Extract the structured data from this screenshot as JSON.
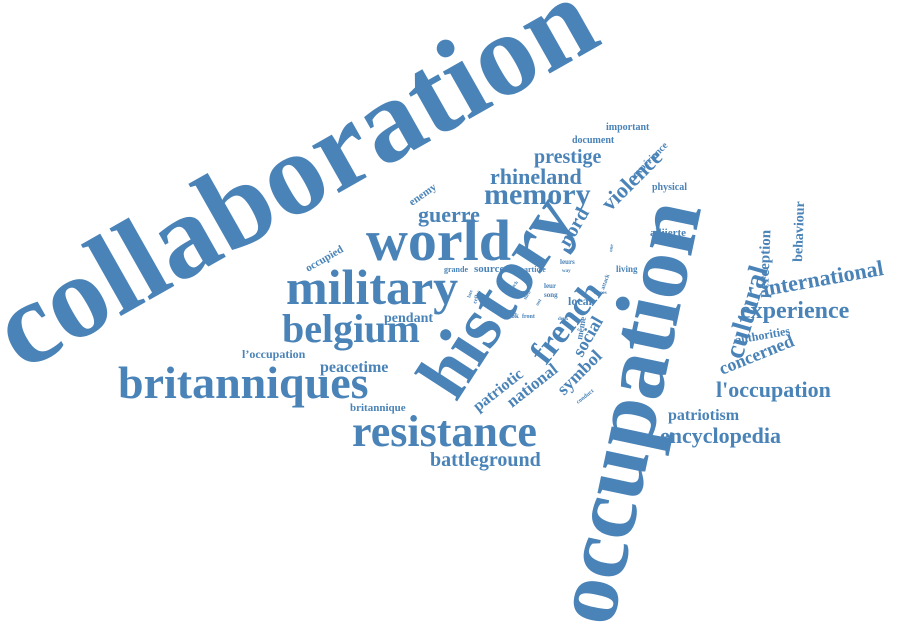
{
  "word_cloud": {
    "color": "#4a83b7",
    "words": [
      "collaboration",
      "occupation",
      "history",
      "world",
      "military",
      "belgium",
      "britanniques",
      "resistance",
      "french",
      "memory",
      "rhineland",
      "prestige",
      "violence",
      "guerre",
      "cultural",
      "experience",
      "international",
      "l'occupation",
      "encyclopedia",
      "battleground",
      "patriotic",
      "national",
      "symbol",
      "social",
      "nord",
      "peacetime",
      "pendant",
      "l’occupation",
      "britannique",
      "patriotism",
      "concerned",
      "authorities",
      "perception",
      "behaviour",
      "occupied",
      "enemy",
      "document",
      "important",
      "expérience",
      "physical",
      "alliierte",
      "grande",
      "source",
      "article",
      "local",
      "même",
      "living",
      "book",
      "front",
      "song",
      "leur",
      "leurs",
      "way",
      "attack",
      "forces",
      "deux",
      "conduct",
      "celles",
      "late",
      "such",
      "use",
      "then",
      "ont",
      "one"
    ]
  }
}
